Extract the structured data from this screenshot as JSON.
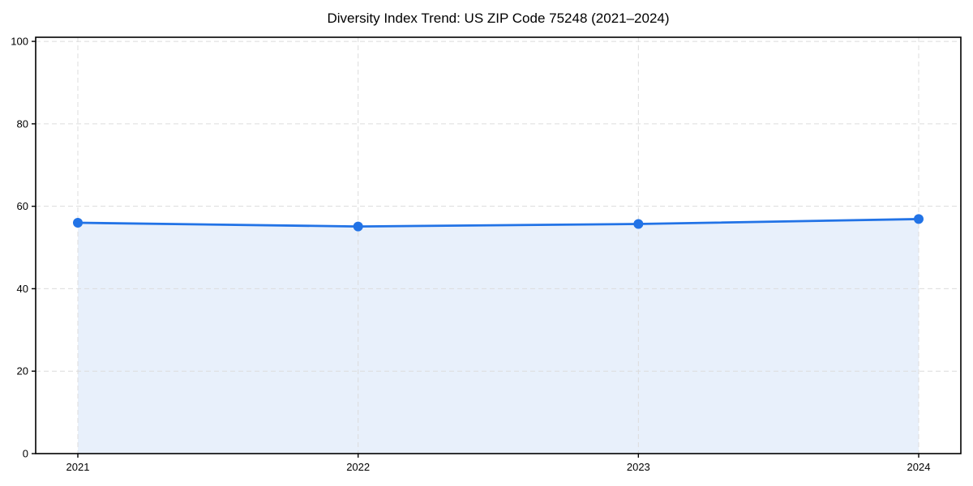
{
  "chart_data": {
    "type": "area",
    "title": "Diversity Index Trend: US ZIP Code 75248 (2021–2024)",
    "categories": [
      "2021",
      "2022",
      "2023",
      "2024"
    ],
    "series": [
      {
        "name": "Diversity Index",
        "values": [
          56.0,
          55.1,
          55.7,
          56.9
        ]
      }
    ],
    "xlabel": "",
    "ylabel": "",
    "ylim": [
      0,
      100
    ],
    "yticks": [
      0,
      20,
      40,
      60,
      80,
      100
    ],
    "grid": true,
    "grid_style": "dashed",
    "legend": "none",
    "colors": {
      "line": "#2273e6",
      "marker": "#2273e6",
      "fill": "#e8f0fb",
      "grid": "#dcdcdc",
      "axis": "#000000",
      "text": "#000000",
      "background": "#ffffff"
    }
  }
}
